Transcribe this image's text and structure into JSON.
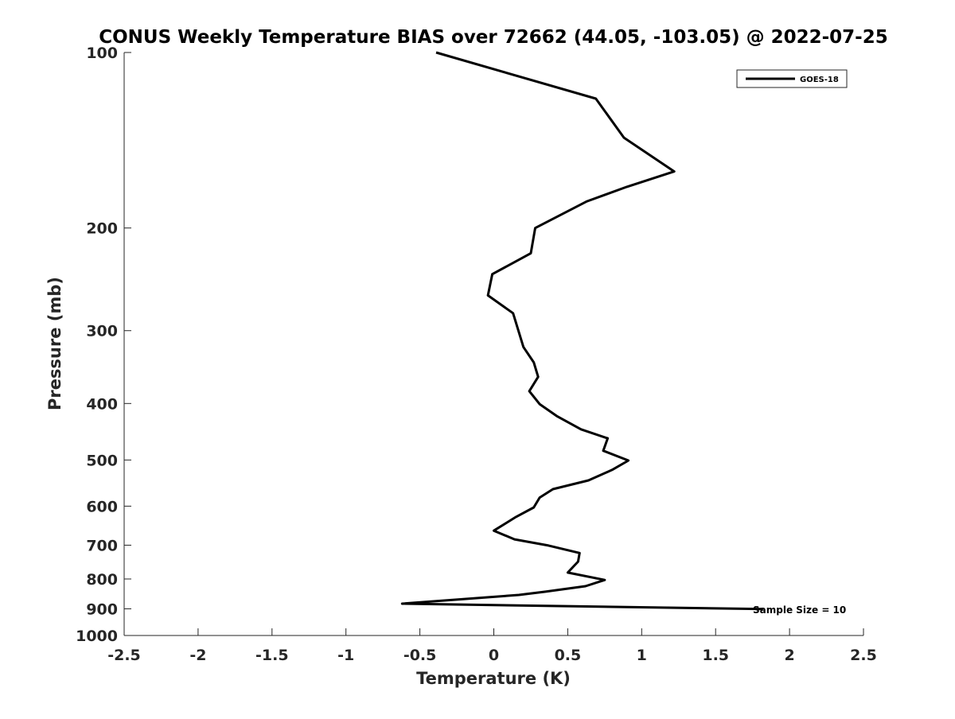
{
  "chart_data": {
    "type": "line",
    "title": "CONUS Weekly Temperature BIAS over 72662 (44.05, -103.05) @ 2022-07-25",
    "xlabel": "Temperature (K)",
    "ylabel": "Pressure (mb)",
    "xlim": [
      -2.5,
      2.5
    ],
    "ylim": [
      100,
      1000
    ],
    "yscale": "log",
    "yreversed": true,
    "xticks": [
      -2.5,
      -2,
      -1.5,
      -1,
      -0.5,
      0,
      0.5,
      1,
      1.5,
      2,
      2.5
    ],
    "xtick_labels": [
      "-2.5",
      "-2",
      "-1.5",
      "-1",
      "-0.5",
      "0",
      "0.5",
      "1",
      "1.5",
      "2",
      "2.5"
    ],
    "yticks": [
      100,
      200,
      300,
      400,
      500,
      600,
      700,
      800,
      900,
      1000
    ],
    "ytick_labels": [
      "100",
      "200",
      "300",
      "400",
      "500",
      "600",
      "700",
      "800",
      "900",
      "1000"
    ],
    "grid": false,
    "legend": {
      "placement": "top-right",
      "entries": [
        "GOES-18"
      ]
    },
    "annotation": "Sample Size = 10",
    "series": [
      {
        "name": "GOES-18",
        "color": "#000000",
        "x": [
          -0.39,
          0.69,
          0.88,
          1.22,
          0.9,
          0.63,
          0.28,
          0.25,
          -0.01,
          -0.04,
          0.13,
          0.2,
          0.27,
          0.3,
          0.24,
          0.31,
          0.43,
          0.59,
          0.77,
          0.74,
          0.91,
          0.8,
          0.64,
          0.4,
          0.31,
          0.27,
          0.15,
          0.0,
          0.14,
          0.37,
          0.58,
          0.57,
          0.5,
          0.75,
          0.62,
          0.35,
          0.17,
          -0.62,
          1.82
        ],
        "y": [
          100,
          120,
          140,
          160,
          170,
          180,
          200,
          221,
          240,
          261,
          280,
          320,
          340,
          360,
          381,
          401,
          421,
          443,
          459,
          482,
          501,
          520,
          542,
          561,
          580,
          603,
          626,
          661,
          684,
          701,
          722,
          747,
          780,
          803,
          823,
          841,
          852,
          882,
          901
        ]
      }
    ]
  }
}
